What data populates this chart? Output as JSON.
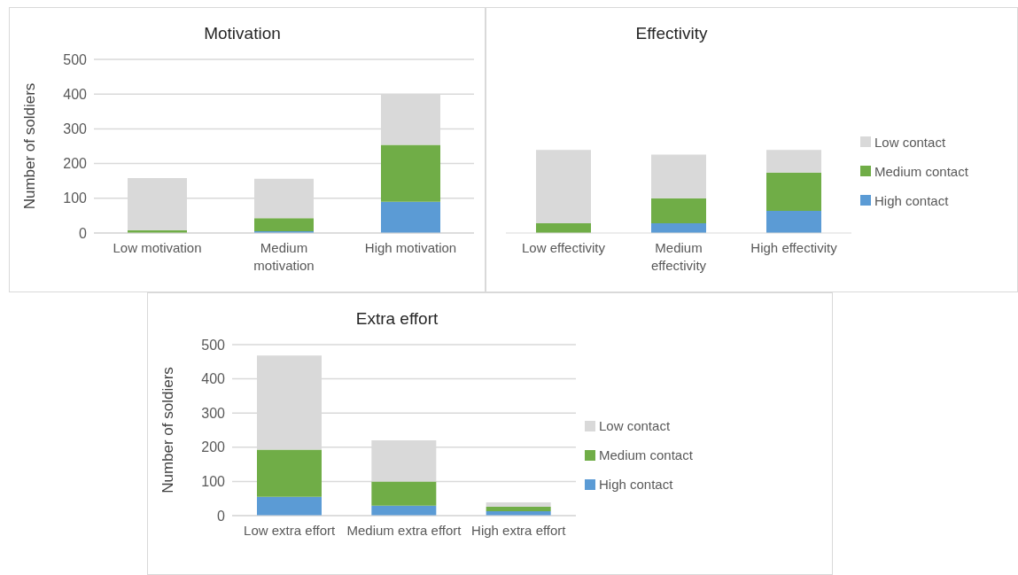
{
  "chart_data": [
    {
      "type": "bar",
      "title": "Motivation",
      "ylabel": "Number of soldiers",
      "categories": [
        "Low motivation",
        "Medium motivation",
        "High motivation"
      ],
      "stacked": true,
      "ylim": [
        0,
        500
      ],
      "yticks": [
        0,
        100,
        200,
        300,
        400,
        500
      ],
      "grid": "y",
      "legend": false,
      "series": [
        {
          "color": "#5b9bd5",
          "values": [
            null,
            5,
            90
          ]
        },
        {
          "color": "#70ad47",
          "values": [
            8,
            38,
            164
          ]
        },
        {
          "color": "#d9d9d9",
          "values": [
            150,
            113,
            146
          ]
        }
      ]
    },
    {
      "type": "bar",
      "title": "Effectivity",
      "categories": [
        "Low effectivity",
        "Medium effectivity",
        "High effectivity"
      ],
      "stacked": true,
      "ylim": [
        0,
        500
      ],
      "yticks": [
        0,
        100,
        200,
        300,
        400,
        500
      ],
      "grid": "y",
      "legend": "right",
      "tick_labels": "x",
      "series": [
        {
          "name": "High contact",
          "color": "#5b9bd5",
          "values": [
            null,
            28,
            64
          ]
        },
        {
          "name": "Medium contact",
          "color": "#70ad47",
          "values": [
            28,
            72,
            110
          ]
        },
        {
          "name": "Low contact",
          "color": "#d9d9d9",
          "values": [
            211,
            126,
            65
          ]
        }
      ]
    },
    {
      "type": "bar",
      "title": "Extra effort",
      "ylabel": "Number of soldiers",
      "categories": [
        "Low extra effort",
        "Medium extra effort",
        "High extra effort"
      ],
      "stacked": true,
      "ylim": [
        0,
        500
      ],
      "yticks": [
        0,
        100,
        200,
        300,
        400,
        500
      ],
      "grid": "y",
      "legend": "right",
      "series": [
        {
          "name": "High contact",
          "color": "#5b9bd5",
          "values": [
            55,
            29,
            13
          ]
        },
        {
          "name": "Medium contact",
          "color": "#70ad47",
          "values": [
            138,
            71,
            13
          ]
        },
        {
          "name": "Low contact",
          "color": "#d9d9d9",
          "values": [
            275,
            120,
            13
          ]
        }
      ]
    }
  ]
}
